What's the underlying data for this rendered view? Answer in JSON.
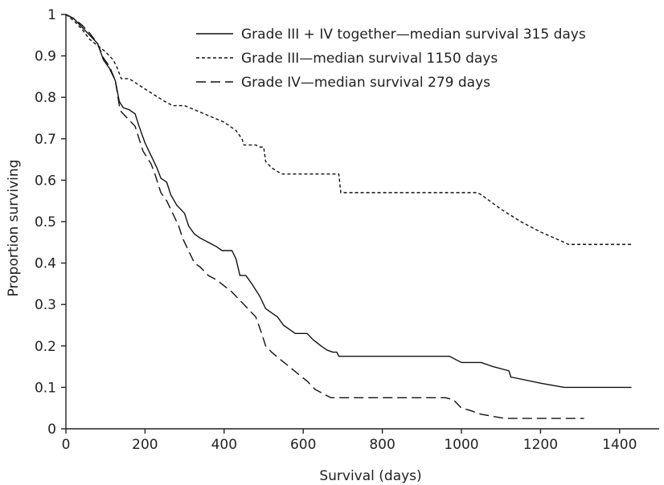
{
  "chart_data": {
    "type": "line",
    "title": "",
    "xlabel": "Survival (days)",
    "ylabel": "Proportion surviving",
    "xlim": [
      0,
      1500
    ],
    "ylim": [
      0,
      1
    ],
    "xticks": [
      0,
      200,
      400,
      600,
      800,
      1000,
      1200,
      1400
    ],
    "xtick_labels": [
      "0",
      "200",
      "400",
      "600",
      "800",
      "1000",
      "1200",
      "1400"
    ],
    "yticks": [
      0,
      0.1,
      0.2,
      0.3,
      0.4,
      0.5,
      0.6,
      0.7,
      0.8,
      0.9,
      1
    ],
    "ytick_labels": [
      "0",
      "0.1",
      "0.2",
      "0.3",
      "0.4",
      "0.5",
      "0.6",
      "0.7",
      "0.8",
      "0.9",
      "1"
    ],
    "grid": false,
    "legend_position": "top-right",
    "series": [
      {
        "name": "Grade III + IV together—median survival 315 days",
        "line_style": "solid",
        "color": "#111111",
        "points": [
          [
            0,
            1
          ],
          [
            20,
            0.99
          ],
          [
            40,
            0.97
          ],
          [
            60,
            0.95
          ],
          [
            80,
            0.93
          ],
          [
            95,
            0.89
          ],
          [
            110,
            0.87
          ],
          [
            125,
            0.84
          ],
          [
            135,
            0.79
          ],
          [
            145,
            0.775
          ],
          [
            160,
            0.77
          ],
          [
            175,
            0.76
          ],
          [
            185,
            0.73
          ],
          [
            200,
            0.69
          ],
          [
            215,
            0.66
          ],
          [
            230,
            0.63
          ],
          [
            240,
            0.605
          ],
          [
            255,
            0.595
          ],
          [
            265,
            0.565
          ],
          [
            280,
            0.54
          ],
          [
            300,
            0.52
          ],
          [
            310,
            0.49
          ],
          [
            325,
            0.47
          ],
          [
            340,
            0.46
          ],
          [
            360,
            0.45
          ],
          [
            380,
            0.44
          ],
          [
            395,
            0.43
          ],
          [
            420,
            0.43
          ],
          [
            430,
            0.41
          ],
          [
            440,
            0.37
          ],
          [
            455,
            0.37
          ],
          [
            470,
            0.35
          ],
          [
            490,
            0.32
          ],
          [
            505,
            0.29
          ],
          [
            520,
            0.28
          ],
          [
            535,
            0.27
          ],
          [
            550,
            0.25
          ],
          [
            565,
            0.24
          ],
          [
            580,
            0.23
          ],
          [
            610,
            0.23
          ],
          [
            625,
            0.215
          ],
          [
            645,
            0.2
          ],
          [
            660,
            0.19
          ],
          [
            675,
            0.185
          ],
          [
            685,
            0.185
          ],
          [
            690,
            0.175
          ],
          [
            760,
            0.175
          ],
          [
            900,
            0.175
          ],
          [
            970,
            0.175
          ],
          [
            1000,
            0.16
          ],
          [
            1050,
            0.16
          ],
          [
            1080,
            0.15
          ],
          [
            1120,
            0.14
          ],
          [
            1125,
            0.125
          ],
          [
            1200,
            0.11
          ],
          [
            1260,
            0.1
          ],
          [
            1430,
            0.1
          ]
        ]
      },
      {
        "name": "Grade III—median survival 1150 days",
        "line_style": "dotted",
        "color": "#111111",
        "points": [
          [
            0,
            1
          ],
          [
            20,
            0.985
          ],
          [
            40,
            0.965
          ],
          [
            60,
            0.94
          ],
          [
            80,
            0.925
          ],
          [
            100,
            0.91
          ],
          [
            120,
            0.89
          ],
          [
            130,
            0.87
          ],
          [
            140,
            0.845
          ],
          [
            160,
            0.845
          ],
          [
            200,
            0.82
          ],
          [
            250,
            0.79
          ],
          [
            270,
            0.78
          ],
          [
            300,
            0.78
          ],
          [
            350,
            0.76
          ],
          [
            400,
            0.74
          ],
          [
            430,
            0.72
          ],
          [
            445,
            0.7
          ],
          [
            450,
            0.685
          ],
          [
            480,
            0.685
          ],
          [
            490,
            0.68
          ],
          [
            500,
            0.68
          ],
          [
            505,
            0.645
          ],
          [
            520,
            0.63
          ],
          [
            545,
            0.615
          ],
          [
            560,
            0.615
          ],
          [
            690,
            0.615
          ],
          [
            695,
            0.57
          ],
          [
            1040,
            0.57
          ],
          [
            1050,
            0.565
          ],
          [
            1100,
            0.53
          ],
          [
            1150,
            0.5
          ],
          [
            1200,
            0.475
          ],
          [
            1260,
            0.45
          ],
          [
            1270,
            0.445
          ],
          [
            1430,
            0.445
          ]
        ]
      },
      {
        "name": "Grade IV—median survival 279 days",
        "line_style": "dashed",
        "color": "#111111",
        "points": [
          [
            0,
            1
          ],
          [
            20,
            0.99
          ],
          [
            40,
            0.975
          ],
          [
            60,
            0.955
          ],
          [
            80,
            0.93
          ],
          [
            95,
            0.895
          ],
          [
            110,
            0.875
          ],
          [
            125,
            0.84
          ],
          [
            135,
            0.78
          ],
          [
            140,
            0.765
          ],
          [
            160,
            0.745
          ],
          [
            175,
            0.73
          ],
          [
            185,
            0.7
          ],
          [
            195,
            0.67
          ],
          [
            215,
            0.64
          ],
          [
            225,
            0.615
          ],
          [
            240,
            0.57
          ],
          [
            255,
            0.55
          ],
          [
            270,
            0.52
          ],
          [
            285,
            0.49
          ],
          [
            295,
            0.46
          ],
          [
            305,
            0.44
          ],
          [
            315,
            0.42
          ],
          [
            325,
            0.4
          ],
          [
            340,
            0.39
          ],
          [
            360,
            0.37
          ],
          [
            380,
            0.36
          ],
          [
            400,
            0.345
          ],
          [
            420,
            0.33
          ],
          [
            440,
            0.31
          ],
          [
            460,
            0.29
          ],
          [
            480,
            0.27
          ],
          [
            495,
            0.23
          ],
          [
            505,
            0.2
          ],
          [
            520,
            0.185
          ],
          [
            545,
            0.165
          ],
          [
            565,
            0.15
          ],
          [
            590,
            0.13
          ],
          [
            610,
            0.115
          ],
          [
            630,
            0.095
          ],
          [
            660,
            0.08
          ],
          [
            670,
            0.075
          ],
          [
            960,
            0.075
          ],
          [
            980,
            0.07
          ],
          [
            1000,
            0.05
          ],
          [
            1020,
            0.045
          ],
          [
            1050,
            0.035
          ],
          [
            1080,
            0.03
          ],
          [
            1110,
            0.025
          ],
          [
            1310,
            0.025
          ]
        ]
      }
    ]
  }
}
